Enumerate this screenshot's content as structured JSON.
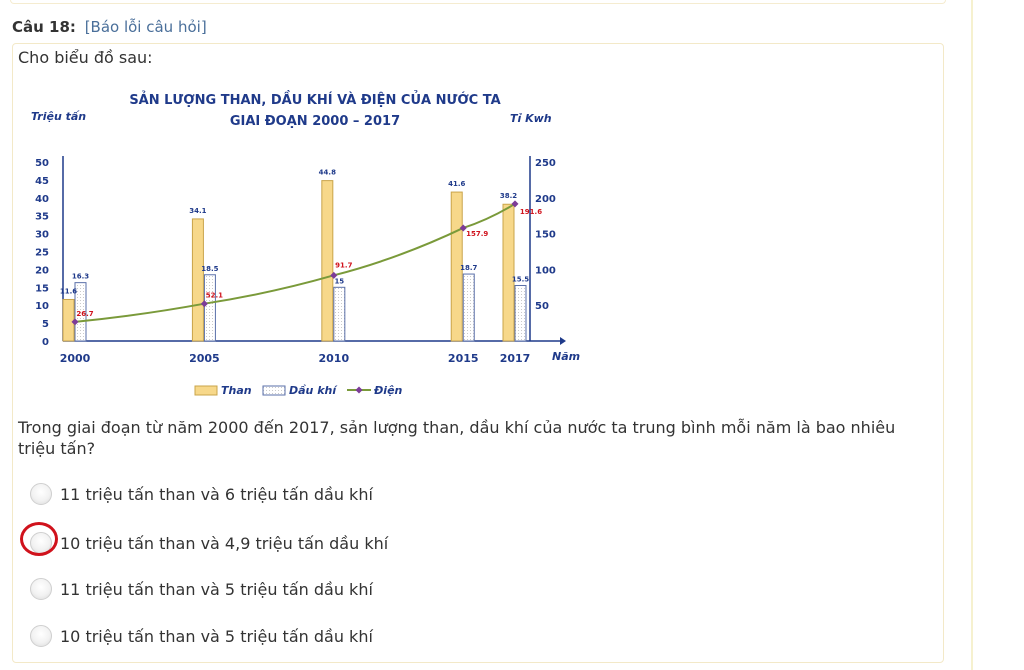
{
  "question": {
    "number_label": "Câu 18:",
    "report_link": "[Báo lỗi câu hỏi]",
    "intro": "Cho biểu đồ sau:",
    "text": "Trong giai đoạn từ năm 2000 đến 2017, sản lượng than, dầu khí của nước ta trung bình mỗi năm là bao nhiêu triệu tấn?",
    "options": [
      {
        "label": "11 triệu tấn than và 6 triệu tấn dầu khí",
        "selected": false
      },
      {
        "label": "10 triệu tấn than và 4,9 triệu tấn dầu khí",
        "selected": false,
        "highlighted": true
      },
      {
        "label": "11 triệu tấn than và 5 triệu tấn dầu khí",
        "selected": false
      },
      {
        "label": "10 triệu tấn than và 5 triệu tấn dầu khí",
        "selected": false
      }
    ]
  },
  "chart_data": {
    "type": "bar",
    "title_line1": "SẢN LƯỢNG THAN, DẦU KHÍ VÀ ĐIỆN CỦA NƯỚC TA",
    "title_line2": "GIAI ĐOẠN 2000 – 2017",
    "ylabel_left": "Triệu tấn",
    "ylabel_right": "Tỉ Kwh",
    "xlabel": "Năm",
    "categories": [
      "2000",
      "2005",
      "2010",
      "2015",
      "2017"
    ],
    "x_years": [
      2000,
      2005,
      2010,
      2015,
      2017
    ],
    "ylim_left": [
      0,
      50
    ],
    "yticks_left": [
      0,
      5,
      10,
      15,
      20,
      25,
      30,
      35,
      40,
      45,
      50
    ],
    "ylim_right": [
      0,
      250
    ],
    "yticks_right": [
      0,
      50,
      100,
      150,
      200,
      250
    ],
    "series": [
      {
        "name": "Than",
        "kind": "bar",
        "axis": "left",
        "values": [
          11.6,
          34.1,
          44.8,
          41.6,
          38.2
        ],
        "labels": [
          "11.6",
          "34.1",
          "44.8",
          "41.6",
          "38.2"
        ],
        "color": "#f7d88a"
      },
      {
        "name": "Dầu khí",
        "kind": "bar",
        "axis": "left",
        "values": [
          16.3,
          18.5,
          15,
          18.7,
          15.5
        ],
        "labels": [
          "16.3",
          "18.5",
          "15",
          "18.7",
          "15.5"
        ],
        "color": "#ffffff"
      },
      {
        "name": "Điện",
        "kind": "line",
        "axis": "right",
        "values": [
          26.7,
          52.1,
          91.7,
          157.9,
          191.6
        ],
        "labels": [
          "26.7",
          "52.1",
          "91.7",
          "157.9",
          "191.6"
        ],
        "color": "#7a9a3a",
        "marker_color": "#7d3c98",
        "label_color": "#d0121c"
      }
    ],
    "legend": [
      "Than",
      "Dầu khí",
      "Điện"
    ],
    "legend_position": "bottom"
  }
}
